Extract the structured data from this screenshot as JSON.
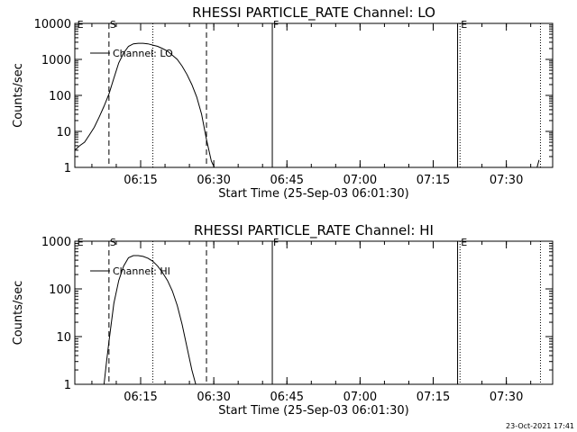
{
  "footer": {
    "timestamp": "23-Oct-2021 17:41"
  },
  "chart_data": [
    {
      "type": "line",
      "title": "RHESSI PARTICLE_RATE Channel: LO",
      "xlabel": "Start Time (25-Sep-03 06:01:30)",
      "ylabel": "Counts/sec",
      "yscale": "log",
      "xlim_minutes": [
        0,
        98
      ],
      "ylim": [
        1,
        10000
      ],
      "x_ticks": [
        {
          "label": "06:15",
          "minutes": 13.5
        },
        {
          "label": "06:30",
          "minutes": 28.5
        },
        {
          "label": "06:45",
          "minutes": 43.5
        },
        {
          "label": "07:00",
          "minutes": 58.5
        },
        {
          "label": "07:15",
          "minutes": 73.5
        },
        {
          "label": "07:30",
          "minutes": 88.5
        }
      ],
      "y_ticks": [
        {
          "label": "1",
          "value": 1
        },
        {
          "label": "10",
          "value": 10
        },
        {
          "label": "100",
          "value": 100
        },
        {
          "label": "1000",
          "value": 1000
        },
        {
          "label": "10000",
          "value": 10000
        }
      ],
      "legend": {
        "entries": [
          "Channel: LO"
        ]
      },
      "markers": [
        {
          "label": "E",
          "minutes": 0.3,
          "style": "none"
        },
        {
          "label": "S",
          "minutes": 7.0,
          "style": "dashed"
        },
        {
          "label": "",
          "minutes": 16.0,
          "style": "dotted"
        },
        {
          "label": "",
          "minutes": 27.0,
          "style": "dashed"
        },
        {
          "label": "F",
          "minutes": 40.5,
          "style": "solid"
        },
        {
          "label": "",
          "minutes": 78.5,
          "style": "solid"
        },
        {
          "label": "E",
          "minutes": 79.0,
          "style": "dotted"
        },
        {
          "label": "",
          "minutes": 95.5,
          "style": "dotted"
        }
      ],
      "series": [
        {
          "name": "Channel: LO",
          "points": [
            [
              0.0,
              3
            ],
            [
              1.0,
              4
            ],
            [
              2.0,
              5
            ],
            [
              3.0,
              8
            ],
            [
              4.0,
              13
            ],
            [
              5.0,
              25
            ],
            [
              6.0,
              50
            ],
            [
              7.0,
              110
            ],
            [
              8.0,
              300
            ],
            [
              9.0,
              800
            ],
            [
              10.0,
              1500
            ],
            [
              11.0,
              2300
            ],
            [
              12.0,
              2700
            ],
            [
              13.0,
              2800
            ],
            [
              14.0,
              2800
            ],
            [
              15.0,
              2700
            ],
            [
              16.0,
              2500
            ],
            [
              17.0,
              2300
            ],
            [
              18.0,
              2000
            ],
            [
              19.0,
              1700
            ],
            [
              20.0,
              1300
            ],
            [
              21.0,
              1000
            ],
            [
              22.0,
              650
            ],
            [
              23.0,
              380
            ],
            [
              24.0,
              200
            ],
            [
              25.0,
              90
            ],
            [
              26.0,
              30
            ],
            [
              27.0,
              6
            ],
            [
              28.0,
              1.5
            ],
            [
              28.6,
              1
            ]
          ]
        },
        {
          "name": "Channel: LO late",
          "points": [
            [
              94.8,
              1
            ],
            [
              95.2,
              1.6
            ]
          ]
        }
      ]
    },
    {
      "type": "line",
      "title": "RHESSI PARTICLE_RATE Channel: HI",
      "xlabel": "Start Time (25-Sep-03 06:01:30)",
      "ylabel": "Counts/sec",
      "yscale": "log",
      "xlim_minutes": [
        0,
        98
      ],
      "ylim": [
        1,
        1000
      ],
      "x_ticks": [
        {
          "label": "06:15",
          "minutes": 13.5
        },
        {
          "label": "06:30",
          "minutes": 28.5
        },
        {
          "label": "06:45",
          "minutes": 43.5
        },
        {
          "label": "07:00",
          "minutes": 58.5
        },
        {
          "label": "07:15",
          "minutes": 73.5
        },
        {
          "label": "07:30",
          "minutes": 88.5
        }
      ],
      "y_ticks": [
        {
          "label": "1",
          "value": 1
        },
        {
          "label": "10",
          "value": 10
        },
        {
          "label": "100",
          "value": 100
        },
        {
          "label": "1000",
          "value": 1000
        }
      ],
      "legend": {
        "entries": [
          "Channel: HI"
        ]
      },
      "markers": [
        {
          "label": "E",
          "minutes": 0.3,
          "style": "none"
        },
        {
          "label": "S",
          "minutes": 7.0,
          "style": "dashed"
        },
        {
          "label": "",
          "minutes": 16.0,
          "style": "dotted"
        },
        {
          "label": "",
          "minutes": 27.0,
          "style": "dashed"
        },
        {
          "label": "F",
          "minutes": 40.5,
          "style": "solid"
        },
        {
          "label": "",
          "minutes": 78.5,
          "style": "solid"
        },
        {
          "label": "E",
          "minutes": 79.0,
          "style": "dotted"
        },
        {
          "label": "",
          "minutes": 95.5,
          "style": "dotted"
        }
      ],
      "series": [
        {
          "name": "Channel: HI",
          "points": [
            [
              6.0,
              1
            ],
            [
              6.5,
              3
            ],
            [
              7.0,
              8
            ],
            [
              7.5,
              20
            ],
            [
              8.0,
              50
            ],
            [
              9.0,
              150
            ],
            [
              10.0,
              300
            ],
            [
              11.0,
              450
            ],
            [
              12.0,
              500
            ],
            [
              13.0,
              500
            ],
            [
              14.0,
              480
            ],
            [
              15.0,
              440
            ],
            [
              16.0,
              380
            ],
            [
              17.0,
              300
            ],
            [
              18.0,
              220
            ],
            [
              19.0,
              150
            ],
            [
              20.0,
              90
            ],
            [
              21.0,
              45
            ],
            [
              22.0,
              18
            ],
            [
              23.0,
              6
            ],
            [
              24.0,
              2
            ],
            [
              24.8,
              1
            ]
          ]
        }
      ]
    }
  ]
}
